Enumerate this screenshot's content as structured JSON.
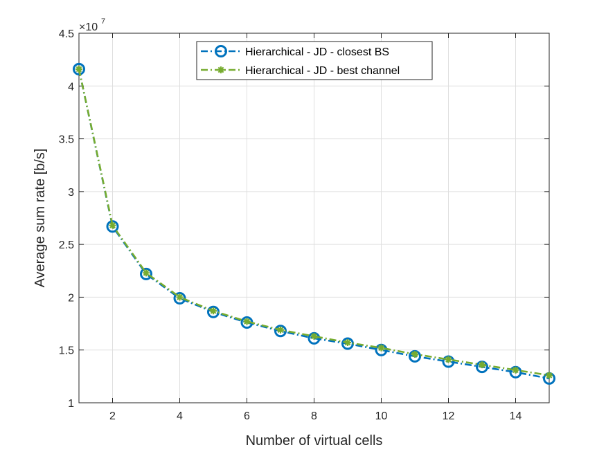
{
  "chart_data": {
    "type": "line",
    "title": "",
    "xlabel": "Number of virtual cells",
    "ylabel": "Average sum rate [b/s]",
    "x": [
      1,
      2,
      3,
      4,
      5,
      6,
      7,
      8,
      9,
      10,
      11,
      12,
      13,
      14,
      15
    ],
    "xlim": [
      1,
      15
    ],
    "ylim": [
      1,
      4.5
    ],
    "y_multiplier_base": "×10",
    "y_multiplier_exp": "7",
    "xticks": [
      2,
      4,
      6,
      8,
      10,
      12,
      14
    ],
    "xtick_labels": [
      "2",
      "4",
      "6",
      "8",
      "10",
      "12",
      "14"
    ],
    "yticks": [
      1,
      1.5,
      2,
      2.5,
      3,
      3.5,
      4,
      4.5
    ],
    "ytick_labels": [
      "1",
      "1.5",
      "2",
      "2.5",
      "3",
      "3.5",
      "4",
      "4.5"
    ],
    "grid": true,
    "legend_position": "top-center",
    "series": [
      {
        "name": "Hierarchical - JD - closest BS",
        "color": "#0072BD",
        "marker": "circle",
        "line_style": "dash-dot",
        "values": [
          4.16,
          2.67,
          2.22,
          1.99,
          1.86,
          1.76,
          1.68,
          1.61,
          1.56,
          1.5,
          1.44,
          1.39,
          1.34,
          1.29,
          1.23
        ]
      },
      {
        "name": "Hierarchical - JD - best channel",
        "color": "#77AC30",
        "marker": "asterisk",
        "line_style": "dash-dot",
        "values": [
          4.16,
          2.68,
          2.23,
          2.0,
          1.87,
          1.77,
          1.69,
          1.63,
          1.57,
          1.52,
          1.46,
          1.41,
          1.36,
          1.31,
          1.26
        ]
      }
    ]
  }
}
